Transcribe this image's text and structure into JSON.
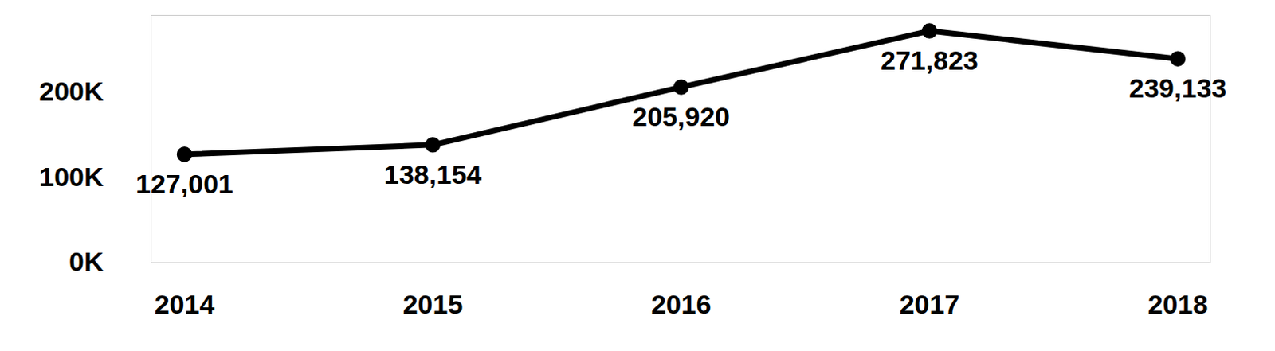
{
  "chart_data": {
    "type": "line",
    "categories": [
      "2014",
      "2015",
      "2016",
      "2017",
      "2018"
    ],
    "values": [
      127001,
      138154,
      205920,
      271823,
      239133
    ],
    "value_labels": [
      "127,001",
      "138,154",
      "205,920",
      "271,823",
      "239,133"
    ],
    "color": "#000000",
    "marker": "circle",
    "line_style": "solid",
    "data_labels": true,
    "grid": false,
    "ylim": [
      0,
      290000
    ],
    "yticks": [
      {
        "value": 0,
        "label": "0K"
      },
      {
        "value": 100000,
        "label": "100K"
      },
      {
        "value": 200000,
        "label": "200K"
      }
    ]
  }
}
